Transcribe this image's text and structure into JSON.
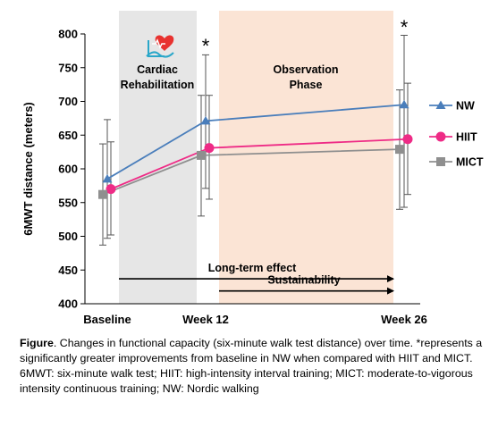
{
  "chart_data": {
    "type": "line",
    "ylabel": "6MWT distance (meters)",
    "ylim": [
      400,
      800
    ],
    "yticks": [
      400,
      450,
      500,
      550,
      600,
      650,
      700,
      750,
      800
    ],
    "categories": [
      "Baseline",
      "Week 12",
      "Week 26"
    ],
    "series": [
      {
        "name": "NW",
        "color": "#4a7ebb",
        "marker": "triangle",
        "values": [
          585,
          671,
          695
        ],
        "err_low": [
          497,
          571,
          543
        ],
        "err_high": [
          673,
          769,
          798
        ]
      },
      {
        "name": "HIIT",
        "color": "#ee2b86",
        "marker": "circle",
        "values": [
          570,
          631,
          644
        ],
        "err_low": [
          502,
          555,
          562
        ],
        "err_high": [
          640,
          709,
          727
        ]
      },
      {
        "name": "MICT",
        "color": "#8f8f8f",
        "marker": "square",
        "values": [
          562,
          620,
          629
        ],
        "err_low": [
          487,
          530,
          540
        ],
        "err_high": [
          637,
          709,
          717
        ]
      }
    ],
    "regions": [
      {
        "label_lines": [
          "Cardiac",
          "Rehabilitation"
        ],
        "from": "Baseline",
        "to": "Week 12",
        "color": "#e6e6e6"
      },
      {
        "label_lines": [
          "Observation",
          "Phase"
        ],
        "from": "Week 12",
        "to": "Week 26",
        "color": "#fbe4d5"
      }
    ],
    "annotations": [
      {
        "type": "arrow",
        "label": "Long-term effect",
        "from": "Baseline",
        "to": "Week 26",
        "y": 437
      },
      {
        "type": "arrow",
        "label": "Sustainability",
        "from": "Week 12",
        "to": "Week 26",
        "y": 419
      },
      {
        "type": "significance",
        "label": "*",
        "at": "Week 12"
      },
      {
        "type": "significance",
        "label": "*",
        "at": "Week 26"
      }
    ],
    "legend": "right",
    "grid": false,
    "icon": "heart-icon"
  },
  "caption": {
    "label": "Figure",
    "text": ". Changes in functional capacity (six-minute walk test distance) over time. *represents a significantly greater improvements from baseline in NW when compared with HIIT and MICT. 6MWT: six-minute walk test; HIIT: high-intensity interval training; MICT: moderate-to-vigorous intensity continuous training; NW: Nordic walking"
  }
}
